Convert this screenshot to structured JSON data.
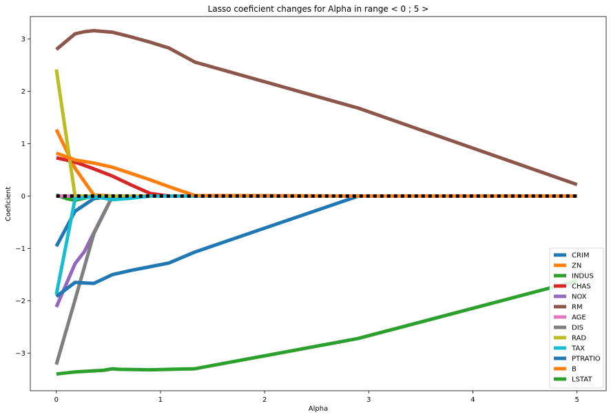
{
  "chart_data": {
    "type": "line",
    "title": "Lasso coeficient changes for Alpha in range < 0 ; 5 >",
    "xlabel": "Alpha",
    "ylabel": "Coeficient",
    "xlim": [
      -0.25,
      5.28
    ],
    "ylim": [
      -3.72,
      3.43
    ],
    "xticks": [
      0,
      1,
      2,
      3,
      4,
      5
    ],
    "yticks": [
      -3,
      -2,
      -1,
      0,
      1,
      2,
      3
    ],
    "grid": false,
    "legend_position": "bottom-right",
    "series": [
      {
        "name": "CRIM",
        "color": "#1f77b4",
        "x": [
          0,
          0.18,
          0.36,
          0.54,
          0.72,
          0.9,
          1.08,
          1.33,
          2.9,
          5
        ],
        "y": [
          -0.96,
          -0.29,
          -0.05,
          0,
          0,
          0,
          0,
          0,
          0,
          0
        ]
      },
      {
        "name": "ZN",
        "color": "#ff7f0e",
        "x": [
          0,
          0.18,
          0.36,
          0.54,
          0.72,
          0.9,
          1.08,
          1.33,
          2.9,
          5
        ],
        "y": [
          1.27,
          0.53,
          0.02,
          0,
          0,
          0,
          0,
          0,
          0,
          0
        ]
      },
      {
        "name": "INDUS",
        "color": "#2ca02c",
        "x": [
          0,
          0.1,
          0.18,
          0.36,
          0.54,
          0.72,
          0.9,
          1.08,
          1.33,
          2.9,
          5
        ],
        "y": [
          0.02,
          -0.05,
          -0.08,
          0,
          0,
          0,
          0,
          0,
          0,
          0,
          0
        ]
      },
      {
        "name": "CHAS",
        "color": "#d62728",
        "x": [
          0,
          0.18,
          0.36,
          0.54,
          0.72,
          0.9,
          1.08,
          1.33,
          2.9,
          5
        ],
        "y": [
          0.73,
          0.65,
          0.52,
          0.38,
          0.21,
          0.05,
          0,
          0,
          0,
          0
        ]
      },
      {
        "name": "NOX",
        "color": "#9467bd",
        "x": [
          0,
          0.18,
          0.27,
          0.36,
          0.54,
          0.72,
          0.9,
          1.08,
          1.33,
          2.9,
          5
        ],
        "y": [
          -2.12,
          -1.29,
          -1.06,
          -0.7,
          0,
          0,
          0,
          0,
          0,
          0,
          0
        ]
      },
      {
        "name": "RM",
        "color": "#8c564b",
        "x": [
          0,
          0.18,
          0.27,
          0.36,
          0.54,
          0.72,
          0.9,
          1.08,
          1.33,
          2.9,
          5
        ],
        "y": [
          2.8,
          3.1,
          3.14,
          3.16,
          3.13,
          3.04,
          2.94,
          2.83,
          2.56,
          1.68,
          0.22
        ]
      },
      {
        "name": "AGE",
        "color": "#e377c2",
        "x": [
          0,
          0.18,
          0.36,
          0.54,
          0.72,
          0.9,
          1.08,
          1.33,
          2.9,
          5
        ],
        "y": [
          0,
          0,
          0,
          0,
          0,
          0,
          0,
          0,
          0,
          0
        ]
      },
      {
        "name": "DIS",
        "color": "#7f7f7f",
        "x": [
          0,
          0.18,
          0.36,
          0.54,
          0.72,
          0.9,
          1.08,
          1.33,
          2.9,
          5
        ],
        "y": [
          -3.22,
          -1.98,
          -0.72,
          0,
          0,
          0,
          0,
          0,
          0,
          0
        ]
      },
      {
        "name": "RAD",
        "color": "#bcbd22",
        "x": [
          0,
          0.18,
          0.36,
          0.54,
          0.72,
          0.9,
          1.08,
          1.33,
          2.9,
          5
        ],
        "y": [
          2.42,
          0,
          0,
          0,
          0,
          0,
          0,
          0,
          0,
          0
        ]
      },
      {
        "name": "TAX",
        "color": "#17becf",
        "x": [
          0,
          0.18,
          0.36,
          0.54,
          0.72,
          0.9,
          1.08,
          1.33,
          2.9,
          5
        ],
        "y": [
          -1.88,
          -0.05,
          -0.01,
          -0.07,
          -0.04,
          0,
          0,
          0,
          0,
          0
        ]
      },
      {
        "name": "PTRATIO",
        "color": "#1f77b4",
        "x": [
          0,
          0.18,
          0.36,
          0.54,
          0.72,
          0.9,
          1.08,
          1.33,
          2.9,
          5
        ],
        "y": [
          -1.92,
          -1.65,
          -1.67,
          -1.5,
          -1.42,
          -1.35,
          -1.28,
          -1.07,
          0,
          0
        ]
      },
      {
        "name": "B",
        "color": "#ff7f0e",
        "x": [
          0,
          0.18,
          0.36,
          0.54,
          0.72,
          0.9,
          1.08,
          1.33,
          2.9,
          5
        ],
        "y": [
          0.82,
          0.69,
          0.63,
          0.55,
          0.43,
          0.31,
          0.18,
          0.01,
          0,
          0
        ]
      },
      {
        "name": "LSTAT",
        "color": "#2ca02c",
        "x": [
          0,
          0.18,
          0.27,
          0.36,
          0.45,
          0.54,
          0.6,
          0.9,
          1.33,
          2.9,
          5
        ],
        "y": [
          -3.4,
          -3.36,
          -3.35,
          -3.34,
          -3.33,
          -3.3,
          -3.31,
          -3.32,
          -3.3,
          -2.72,
          -1.62
        ]
      }
    ],
    "zero_line": {
      "color": "#000000",
      "style": "dotted"
    }
  }
}
